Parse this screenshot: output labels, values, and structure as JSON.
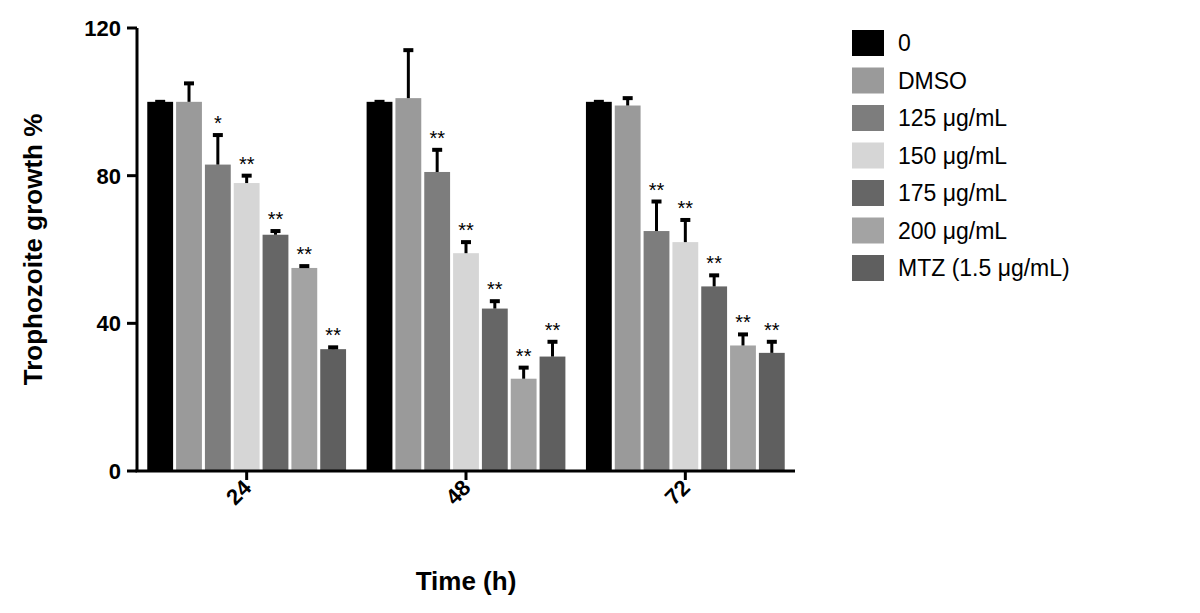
{
  "chart_data": {
    "type": "bar",
    "x_label": "Time (h)",
    "y_label": "Trophozoite growth %",
    "categories": [
      "24",
      "48",
      "72"
    ],
    "ylim": [
      0,
      120
    ],
    "yticks": [
      0,
      40,
      80,
      120
    ],
    "legend": "right",
    "series": [
      {
        "name": "0",
        "color": "#000000",
        "values": [
          100,
          100,
          100
        ],
        "errors": [
          0,
          0,
          0
        ],
        "significance": [
          null,
          null,
          null
        ]
      },
      {
        "name": "DMSO",
        "color": "#9a9a9a",
        "values": [
          100,
          101,
          99
        ],
        "errors": [
          5,
          13,
          2
        ],
        "significance": [
          null,
          null,
          null
        ]
      },
      {
        "name": "125 μg/mL",
        "color": "#7d7d7d",
        "values": [
          83,
          81,
          65
        ],
        "errors": [
          8,
          6,
          8
        ],
        "significance": [
          "*",
          "**",
          "**"
        ]
      },
      {
        "name": "150 μg/mL",
        "color": "#d6d6d6",
        "values": [
          78,
          59,
          62
        ],
        "errors": [
          2,
          3,
          6
        ],
        "significance": [
          "**",
          "**",
          "**"
        ]
      },
      {
        "name": "175 μg/mL",
        "color": "#666666",
        "values": [
          64,
          44,
          50
        ],
        "errors": [
          1,
          2,
          3
        ],
        "significance": [
          "**",
          "**",
          "**"
        ]
      },
      {
        "name": "200 μg/mL",
        "color": "#a3a3a3",
        "values": [
          55,
          25,
          34
        ],
        "errors": [
          0.5,
          3,
          3
        ],
        "significance": [
          "**",
          "**",
          "**"
        ]
      },
      {
        "name": "MTZ (1.5 μg/mL)",
        "color": "#5f5f5f",
        "values": [
          33,
          31,
          32
        ],
        "errors": [
          0.5,
          4,
          3
        ],
        "significance": [
          "**",
          "**",
          "**"
        ]
      }
    ]
  }
}
